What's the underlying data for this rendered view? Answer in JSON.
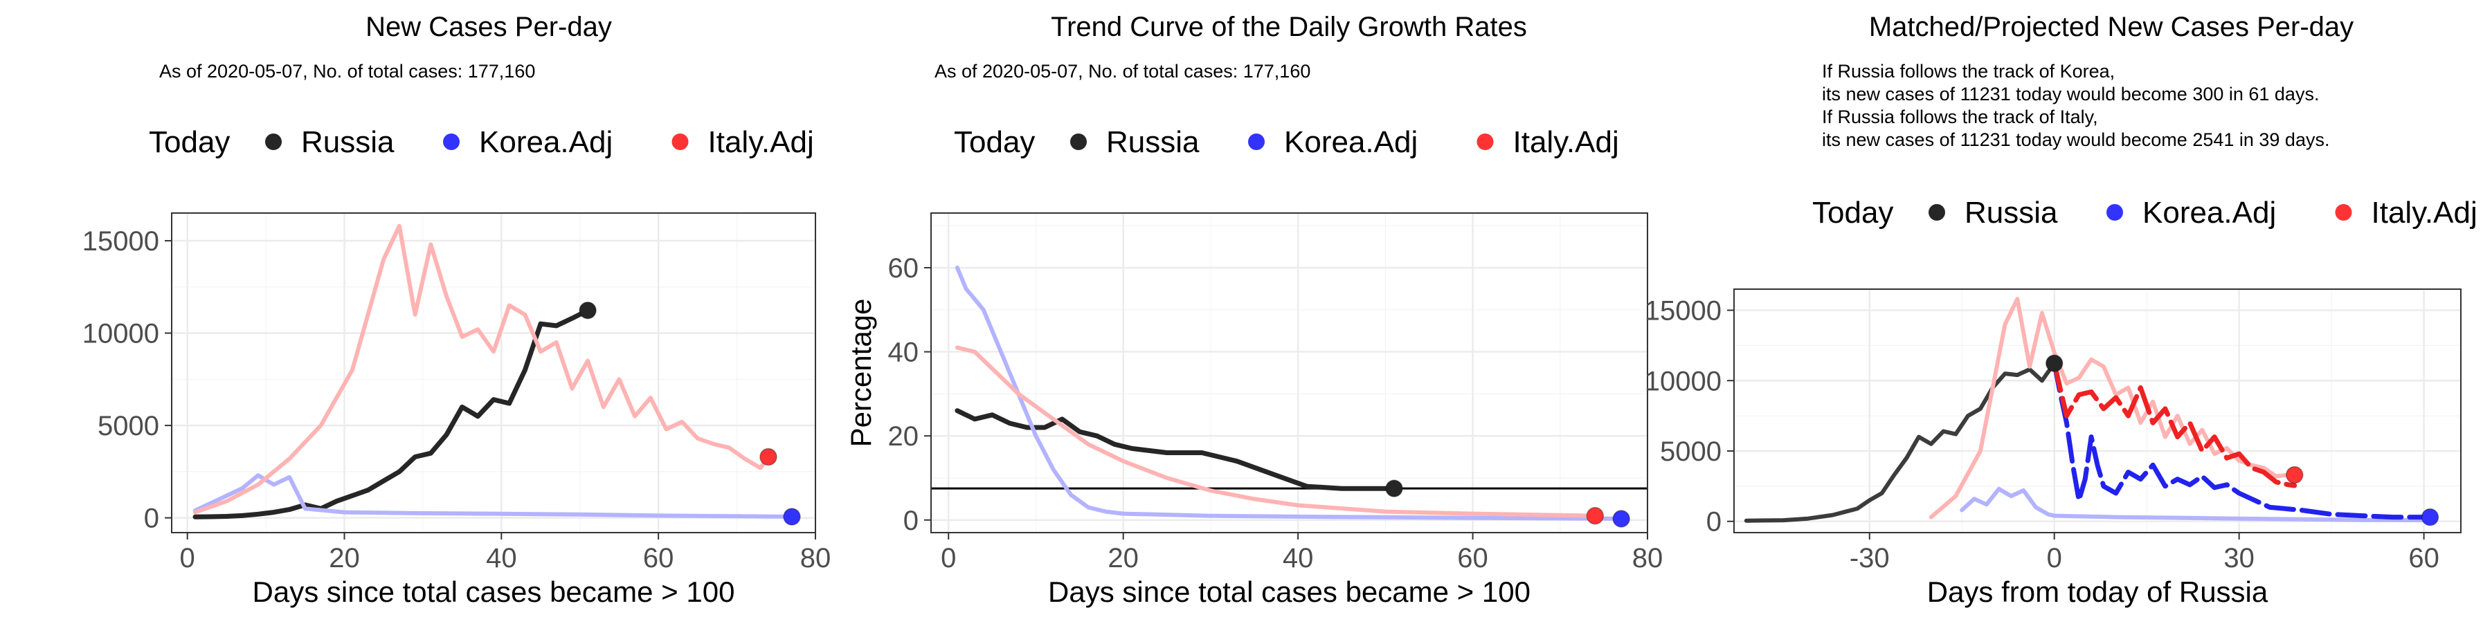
{
  "legend_today_label": "Today",
  "colors": {
    "Russia": "#262626",
    "Korea.Adj": "#3333ff",
    "Italy.Adj": "#ff3333",
    "Russia_light": "#1a1a1a",
    "Korea_light": "#b3b3ff",
    "Italy_light": "#ffb3b3",
    "Korea_proj": "#2222ee",
    "Italy_proj": "#ee2222"
  },
  "chart_data": [
    {
      "type": "line",
      "title": "New Cases Per-day",
      "subtitle": "As of 2020-05-07, No. of total cases: 177,160",
      "xlabel": "Days since total cases became > 100",
      "ylabel": "",
      "xlim": [
        -2,
        80
      ],
      "ylim": [
        -800,
        16500
      ],
      "xticks": [
        0,
        20,
        40,
        60,
        80
      ],
      "yticks": [
        0,
        5000,
        10000,
        15000
      ],
      "series": [
        {
          "name": "Russia",
          "x": [
            1,
            3,
            5,
            7,
            9,
            11,
            13,
            15,
            17,
            19,
            21,
            23,
            25,
            27,
            29,
            31,
            33,
            35,
            37,
            39,
            41,
            43,
            45,
            47,
            49,
            51
          ],
          "values": [
            50,
            60,
            80,
            120,
            200,
            300,
            450,
            700,
            500,
            900,
            1200,
            1500,
            2000,
            2500,
            3300,
            3500,
            4500,
            6000,
            5500,
            6400,
            6200,
            8000,
            10500,
            10400,
            10800,
            11231
          ]
        },
        {
          "name": "Korea.Adj",
          "x": [
            1,
            3,
            5,
            7,
            9,
            11,
            13,
            15,
            20,
            30,
            40,
            50,
            60,
            70,
            77
          ],
          "values": [
            400,
            800,
            1200,
            1600,
            2300,
            1800,
            2200,
            500,
            300,
            250,
            220,
            180,
            120,
            90,
            60
          ]
        },
        {
          "name": "Italy.Adj",
          "x": [
            1,
            5,
            9,
            13,
            17,
            21,
            25,
            27,
            29,
            31,
            33,
            35,
            37,
            39,
            41,
            43,
            45,
            47,
            49,
            51,
            53,
            55,
            57,
            59,
            61,
            63,
            65,
            67,
            69,
            71,
            73,
            74
          ],
          "values": [
            300,
            900,
            1800,
            3200,
            5000,
            8000,
            14000,
            15800,
            11000,
            14800,
            12000,
            9800,
            10200,
            9000,
            11500,
            11000,
            9000,
            9500,
            7000,
            8500,
            6000,
            7500,
            5500,
            6500,
            4800,
            5200,
            4300,
            4000,
            3800,
            3200,
            2700,
            3300
          ]
        }
      ],
      "today_points": [
        {
          "name": "Russia",
          "x": 51,
          "y": 11231
        },
        {
          "name": "Korea.Adj",
          "x": 77,
          "y": 60
        },
        {
          "name": "Italy.Adj",
          "x": 74,
          "y": 3300
        }
      ]
    },
    {
      "type": "line",
      "title": "Trend Curve of the Daily Growth Rates",
      "subtitle": "As of 2020-05-07, No. of total cases: 177,160",
      "xlabel": "Days since total cases became > 100",
      "ylabel": "Percentage",
      "xlim": [
        -2,
        80
      ],
      "ylim": [
        -3,
        73
      ],
      "xticks": [
        0,
        20,
        40,
        60,
        80
      ],
      "yticks": [
        0,
        20,
        40,
        60
      ],
      "hline": 7.5,
      "series": [
        {
          "name": "Russia",
          "x": [
            1,
            3,
            5,
            7,
            9,
            11,
            13,
            15,
            17,
            19,
            21,
            25,
            29,
            33,
            37,
            41,
            45,
            51
          ],
          "values": [
            26,
            24,
            25,
            23,
            22,
            22,
            24,
            21,
            20,
            18,
            17,
            16,
            16,
            14,
            11,
            8,
            7.5,
            7.5
          ]
        },
        {
          "name": "Korea.Adj",
          "x": [
            1,
            2,
            4,
            6,
            8,
            10,
            12,
            14,
            16,
            18,
            20,
            30,
            40,
            60,
            77
          ],
          "values": [
            60,
            55,
            50,
            40,
            30,
            20,
            12,
            6,
            3,
            2,
            1.5,
            1,
            0.8,
            0.5,
            0.3
          ]
        },
        {
          "name": "Italy.Adj",
          "x": [
            1,
            3,
            5,
            8,
            12,
            16,
            20,
            25,
            30,
            35,
            40,
            50,
            60,
            74
          ],
          "values": [
            41,
            40,
            36,
            30,
            24,
            18,
            14,
            10,
            7,
            5,
            3.5,
            2,
            1.5,
            1
          ]
        }
      ],
      "today_points": [
        {
          "name": "Russia",
          "x": 51,
          "y": 7.5
        },
        {
          "name": "Korea.Adj",
          "x": 77,
          "y": 0.3
        },
        {
          "name": "Italy.Adj",
          "x": 74,
          "y": 1
        }
      ]
    },
    {
      "type": "line",
      "title": "Matched/Projected New Cases Per-day",
      "subtitle": [
        "If Russia follows the track of Korea,",
        "its new cases of 11231 today would become 300 in 61 days.",
        "If Russia follows the track of Italy,",
        "its new cases of 11231 today would become 2541 in 39 days."
      ],
      "xlabel": "Days from today of Russia",
      "ylabel": "",
      "xlim": [
        -52,
        66
      ],
      "ylim": [
        -800,
        16500
      ],
      "xticks": [
        -30,
        0,
        30,
        60
      ],
      "yticks": [
        0,
        5000,
        10000,
        15000
      ],
      "series": [
        {
          "name": "Russia",
          "x": [
            -50,
            -44,
            -40,
            -36,
            -32,
            -30,
            -28,
            -26,
            -24,
            -22,
            -20,
            -18,
            -16,
            -14,
            -12,
            -10,
            -8,
            -6,
            -4,
            -2,
            0
          ],
          "values": [
            50,
            80,
            200,
            450,
            900,
            1500,
            2000,
            3300,
            4500,
            6000,
            5500,
            6400,
            6200,
            7500,
            8000,
            9500,
            10500,
            10400,
            10800,
            10000,
            11231
          ]
        },
        {
          "name": "Korea.Adj",
          "x": [
            -15,
            -13,
            -11,
            -9,
            -7,
            -5,
            -3,
            -1,
            0,
            10,
            20,
            30,
            40,
            50,
            60
          ],
          "values": [
            800,
            1600,
            1200,
            2300,
            1800,
            2200,
            1000,
            500,
            400,
            300,
            250,
            200,
            150,
            100,
            80
          ]
        },
        {
          "name": "Italy.Adj",
          "x": [
            -20,
            -16,
            -12,
            -8,
            -6,
            -4,
            -2,
            0,
            2,
            4,
            6,
            8,
            10,
            12,
            14,
            16,
            18,
            20,
            22,
            24,
            26,
            28,
            30,
            32,
            34,
            36,
            38
          ],
          "values": [
            300,
            1800,
            5000,
            14000,
            15800,
            11000,
            14800,
            12000,
            9800,
            10200,
            11500,
            11000,
            9000,
            9500,
            7000,
            8500,
            6000,
            7500,
            5500,
            6500,
            4800,
            5200,
            4300,
            4000,
            3800,
            3200,
            3300
          ]
        },
        {
          "name": "Korea.Adj projected",
          "x": [
            0,
            1,
            2,
            3,
            4,
            5,
            6,
            7,
            8,
            10,
            12,
            14,
            16,
            18,
            20,
            22,
            24,
            26,
            28,
            30,
            35,
            40,
            45,
            50,
            55,
            61
          ],
          "values": [
            11231,
            9000,
            7000,
            4000,
            1500,
            3000,
            6000,
            4000,
            2500,
            2000,
            3500,
            3000,
            4000,
            2500,
            3000,
            2600,
            3200,
            2400,
            2600,
            2000,
            1000,
            800,
            500,
            400,
            300,
            300
          ]
        },
        {
          "name": "Italy.Adj projected",
          "x": [
            0,
            2,
            4,
            6,
            8,
            10,
            12,
            14,
            16,
            18,
            20,
            22,
            24,
            26,
            28,
            30,
            32,
            34,
            36,
            38,
            39
          ],
          "values": [
            11231,
            7500,
            9000,
            9200,
            8000,
            8800,
            7500,
            9500,
            7000,
            8000,
            6000,
            7000,
            5000,
            6000,
            4500,
            4800,
            3800,
            3500,
            2800,
            2600,
            2541
          ]
        }
      ],
      "today_points": [
        {
          "name": "Russia",
          "x": 0,
          "y": 11231
        },
        {
          "name": "Korea.Adj",
          "x": 61,
          "y": 300
        },
        {
          "name": "Italy.Adj",
          "x": 39,
          "y": 3300
        }
      ]
    }
  ]
}
